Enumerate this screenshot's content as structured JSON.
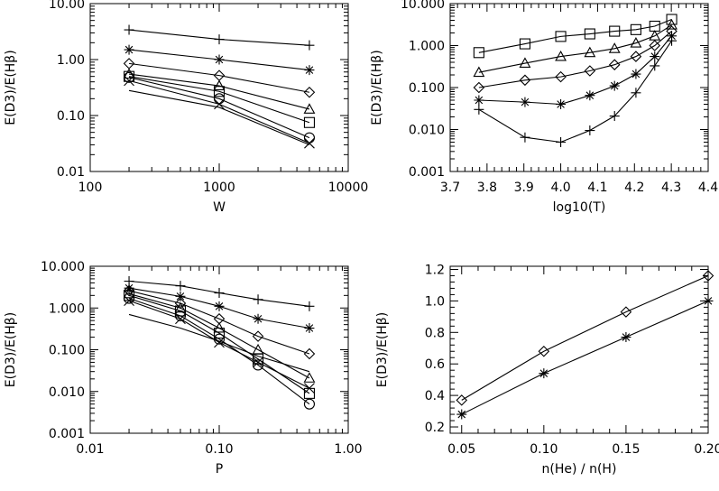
{
  "chart_data": [
    {
      "type": "line",
      "xlabel": "W",
      "ylabel": "E(D3)/E(Hβ)",
      "xscale": "log",
      "yscale": "log",
      "xlim": [
        100,
        10000
      ],
      "ylim": [
        0.01,
        10
      ],
      "xticks": [
        100,
        1000,
        10000
      ],
      "xtick_labels": [
        "100",
        "1000",
        "10000"
      ],
      "yticks": [
        0.01,
        0.1,
        1,
        10
      ],
      "ytick_labels": [
        "0.01",
        "0.10",
        "1.00",
        "10.00"
      ],
      "x": [
        200,
        1000,
        5000
      ],
      "series": [
        {
          "marker": "plus",
          "values": [
            3.4,
            2.3,
            1.8
          ]
        },
        {
          "marker": "asterisk",
          "values": [
            1.5,
            1.0,
            0.65
          ]
        },
        {
          "marker": "diamond",
          "values": [
            0.85,
            0.52,
            0.26
          ]
        },
        {
          "marker": "triangle",
          "values": [
            0.55,
            0.34,
            0.13
          ]
        },
        {
          "marker": "square",
          "values": [
            0.5,
            0.27,
            0.075
          ]
        },
        {
          "marker": "circle",
          "values": [
            0.48,
            0.2,
            0.04
          ]
        },
        {
          "marker": "x",
          "values": [
            0.42,
            0.16,
            0.032
          ]
        },
        {
          "marker": "none",
          "values": [
            0.28,
            0.14,
            0.03
          ]
        }
      ]
    },
    {
      "type": "line",
      "xlabel": "log10(T)",
      "ylabel": "E(D3)/E(Hβ)",
      "xscale": "linear",
      "yscale": "log",
      "xlim": [
        3.7,
        4.4
      ],
      "ylim": [
        0.001,
        10
      ],
      "xticks": [
        3.7,
        3.8,
        3.9,
        4.0,
        4.1,
        4.2,
        4.3,
        4.4
      ],
      "xtick_labels": [
        "3.7",
        "3.8",
        "3.9",
        "4.0",
        "4.1",
        "4.2",
        "4.3",
        "4.4"
      ],
      "yticks": [
        0.001,
        0.01,
        0.1,
        1,
        10
      ],
      "ytick_labels": [
        "0.001",
        "0.010",
        "0.100",
        "1.000",
        "10.000"
      ],
      "x": [
        3.778,
        3.903,
        4.0,
        4.079,
        4.146,
        4.204,
        4.255,
        4.301
      ],
      "series": [
        {
          "marker": "square",
          "values": [
            0.68,
            1.1,
            1.65,
            1.9,
            2.2,
            2.4,
            2.9,
            4.2
          ]
        },
        {
          "marker": "triangle",
          "values": [
            0.23,
            0.38,
            0.55,
            0.68,
            0.85,
            1.15,
            1.7,
            3.1
          ]
        },
        {
          "marker": "diamond",
          "values": [
            0.1,
            0.15,
            0.18,
            0.25,
            0.35,
            0.55,
            1.0,
            2.2
          ]
        },
        {
          "marker": "asterisk",
          "values": [
            0.05,
            0.045,
            0.04,
            0.065,
            0.11,
            0.21,
            0.55,
            1.7
          ]
        },
        {
          "marker": "plus",
          "values": [
            0.03,
            0.0065,
            0.005,
            0.0095,
            0.021,
            0.075,
            0.33,
            1.3
          ]
        }
      ]
    },
    {
      "type": "line",
      "xlabel": "P",
      "ylabel": "E(D3)/E(Hβ)",
      "xscale": "log",
      "yscale": "log",
      "xlim": [
        0.01,
        1.0
      ],
      "ylim": [
        0.001,
        10
      ],
      "xticks": [
        0.01,
        0.1,
        1.0
      ],
      "xtick_labels": [
        "0.01",
        "0.10",
        "1.00"
      ],
      "yticks": [
        0.001,
        0.01,
        0.1,
        1,
        10
      ],
      "ytick_labels": [
        "0.001",
        "0.010",
        "0.100",
        "1.000",
        "10.000"
      ],
      "x": [
        0.02,
        0.05,
        0.1,
        0.2,
        0.5
      ],
      "series": [
        {
          "marker": "plus",
          "values": [
            4.4,
            3.4,
            2.3,
            1.6,
            1.1
          ]
        },
        {
          "marker": "asterisk",
          "values": [
            3.0,
            1.9,
            1.1,
            0.55,
            0.33
          ]
        },
        {
          "marker": "diamond",
          "values": [
            2.6,
            1.3,
            0.55,
            0.21,
            0.08
          ]
        },
        {
          "marker": "triangle",
          "values": [
            2.2,
            1.0,
            0.33,
            0.1,
            0.021
          ]
        },
        {
          "marker": "square",
          "values": [
            2.0,
            0.85,
            0.25,
            0.06,
            0.009
          ]
        },
        {
          "marker": "circle",
          "values": [
            1.7,
            0.65,
            0.18,
            0.043,
            0.005
          ]
        },
        {
          "marker": "x",
          "values": [
            1.5,
            0.55,
            0.15,
            0.05,
            0.012
          ]
        },
        {
          "marker": "none",
          "values": [
            0.7,
            0.33,
            0.16,
            0.07,
            0.03
          ]
        }
      ]
    },
    {
      "type": "line",
      "xlabel": "n(He) / n(H)",
      "ylabel": "E(D3)/E(Hβ)",
      "xscale": "linear",
      "yscale": "linear",
      "xlim": [
        0.043,
        0.2
      ],
      "ylim": [
        0.16,
        1.22
      ],
      "xticks": [
        0.05,
        0.1,
        0.15,
        0.2
      ],
      "xtick_labels": [
        "0.05",
        "0.10",
        "0.15",
        "0.20"
      ],
      "yticks": [
        0.2,
        0.4,
        0.6,
        0.8,
        1.0,
        1.2
      ],
      "ytick_labels": [
        "0.2",
        "0.4",
        "0.6",
        "0.8",
        "1.0",
        "1.2"
      ],
      "x": [
        0.05,
        0.1,
        0.15,
        0.2
      ],
      "series": [
        {
          "marker": "diamond",
          "values": [
            0.37,
            0.68,
            0.93,
            1.16
          ]
        },
        {
          "marker": "asterisk",
          "values": [
            0.28,
            0.54,
            0.77,
            1.0
          ]
        }
      ]
    }
  ]
}
